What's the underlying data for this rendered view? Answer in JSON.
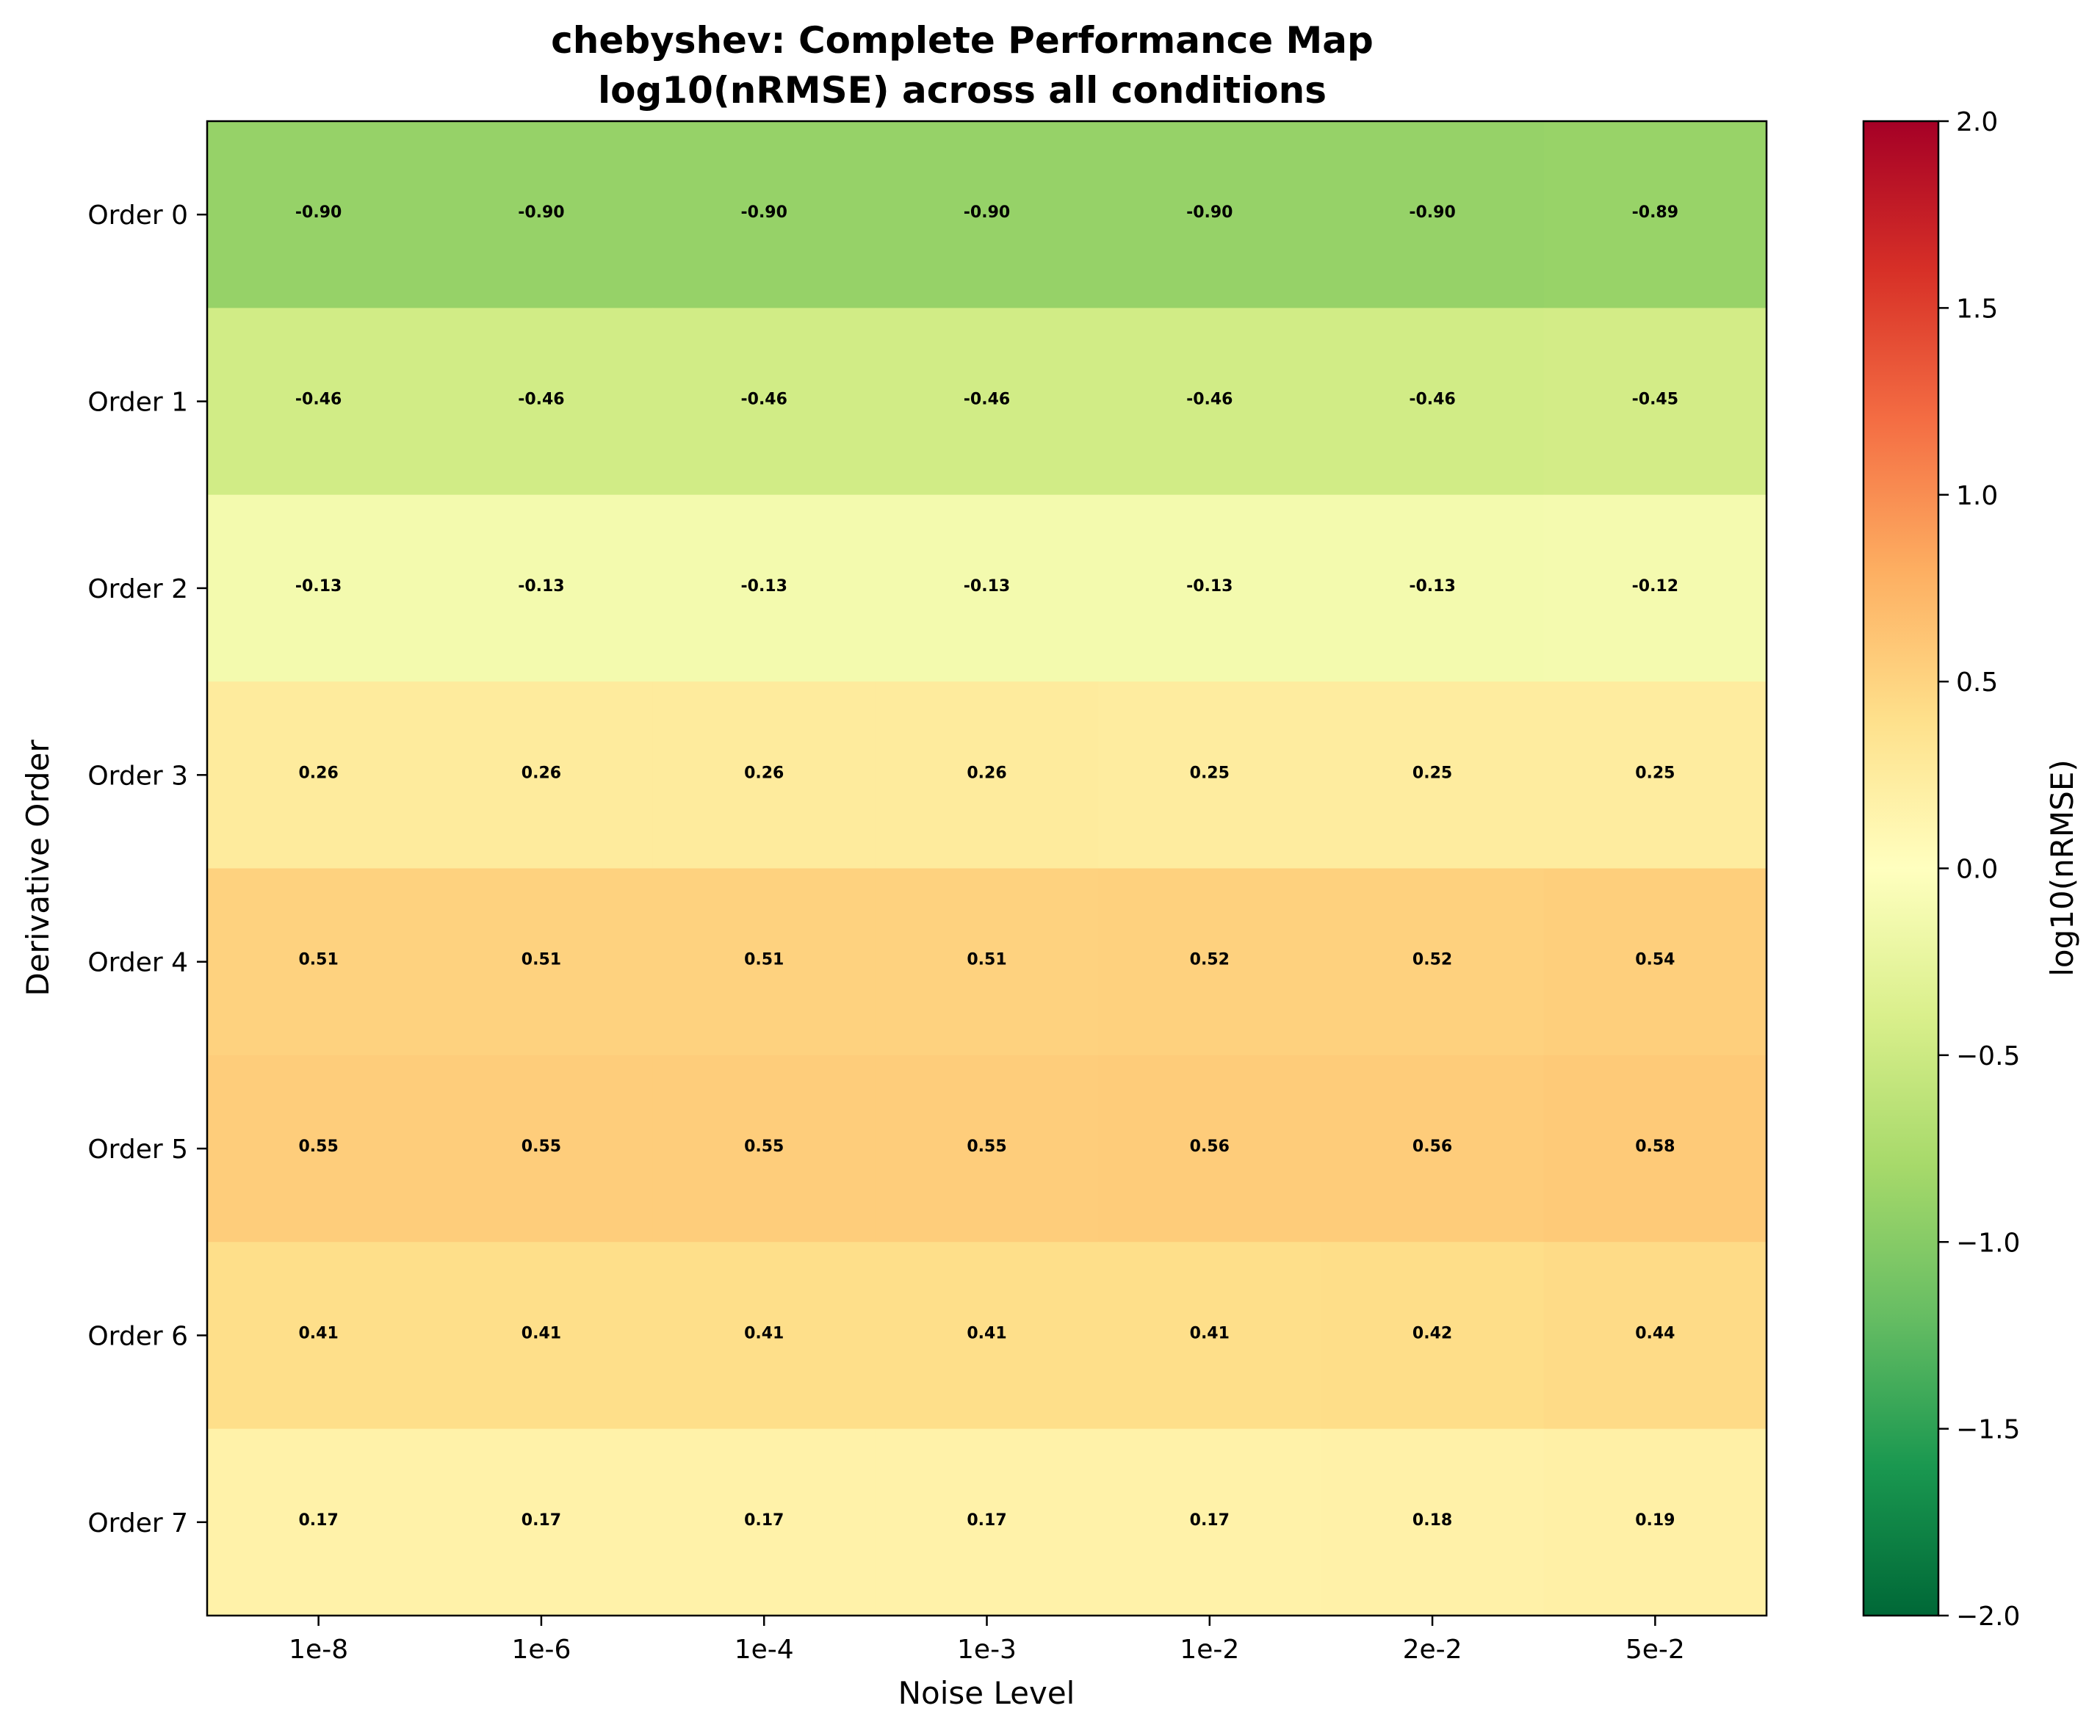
{
  "chart_data": {
    "type": "heatmap",
    "title": "chebyshev: Complete Performance Map",
    "subtitle": "log10(nRMSE) across all conditions",
    "xlabel": "Noise Level",
    "ylabel": "Derivative Order",
    "x_categories": [
      "1e-8",
      "1e-6",
      "1e-4",
      "1e-3",
      "1e-2",
      "2e-2",
      "5e-2"
    ],
    "y_categories": [
      "Order 0",
      "Order 1",
      "Order 2",
      "Order 3",
      "Order 4",
      "Order 5",
      "Order 6",
      "Order 7"
    ],
    "values": [
      [
        -0.9,
        -0.9,
        -0.9,
        -0.9,
        -0.9,
        -0.9,
        -0.89
      ],
      [
        -0.46,
        -0.46,
        -0.46,
        -0.46,
        -0.46,
        -0.46,
        -0.45
      ],
      [
        -0.13,
        -0.13,
        -0.13,
        -0.13,
        -0.13,
        -0.13,
        -0.12
      ],
      [
        0.26,
        0.26,
        0.26,
        0.26,
        0.25,
        0.25,
        0.25
      ],
      [
        0.51,
        0.51,
        0.51,
        0.51,
        0.52,
        0.52,
        0.54
      ],
      [
        0.55,
        0.55,
        0.55,
        0.55,
        0.56,
        0.56,
        0.58
      ],
      [
        0.41,
        0.41,
        0.41,
        0.41,
        0.41,
        0.42,
        0.44
      ],
      [
        0.17,
        0.17,
        0.17,
        0.17,
        0.17,
        0.18,
        0.19
      ]
    ],
    "cell_labels": [
      [
        "-0.90",
        "-0.90",
        "-0.90",
        "-0.90",
        "-0.90",
        "-0.90",
        "-0.89"
      ],
      [
        "-0.46",
        "-0.46",
        "-0.46",
        "-0.46",
        "-0.46",
        "-0.46",
        "-0.45"
      ],
      [
        "-0.13",
        "-0.13",
        "-0.13",
        "-0.13",
        "-0.13",
        "-0.13",
        "-0.12"
      ],
      [
        "0.26",
        "0.26",
        "0.26",
        "0.26",
        "0.25",
        "0.25",
        "0.25"
      ],
      [
        "0.51",
        "0.51",
        "0.51",
        "0.51",
        "0.52",
        "0.52",
        "0.54"
      ],
      [
        "0.55",
        "0.55",
        "0.55",
        "0.55",
        "0.56",
        "0.56",
        "0.58"
      ],
      [
        "0.41",
        "0.41",
        "0.41",
        "0.41",
        "0.41",
        "0.42",
        "0.44"
      ],
      [
        "0.17",
        "0.17",
        "0.17",
        "0.17",
        "0.17",
        "0.18",
        "0.19"
      ]
    ],
    "colorbar": {
      "label": "log10(nRMSE)",
      "colormap": "RdYlGn_r",
      "range": [
        -2.0,
        2.0
      ],
      "ticks": [
        2.0,
        1.5,
        1.0,
        0.5,
        0.0,
        -0.5,
        -1.0,
        -1.5,
        -2.0
      ],
      "tick_labels": [
        "2.0",
        "1.5",
        "1.0",
        "0.5",
        "0.0",
        "−0.5",
        "−1.0",
        "−1.5",
        "−2.0"
      ],
      "colors": [
        "#006837",
        "#1a9850",
        "#66bd63",
        "#a6d96a",
        "#d9ef8b",
        "#ffffbf",
        "#fee08b",
        "#fdae61",
        "#f46d43",
        "#d73027",
        "#a50026"
      ]
    },
    "grid": false
  }
}
